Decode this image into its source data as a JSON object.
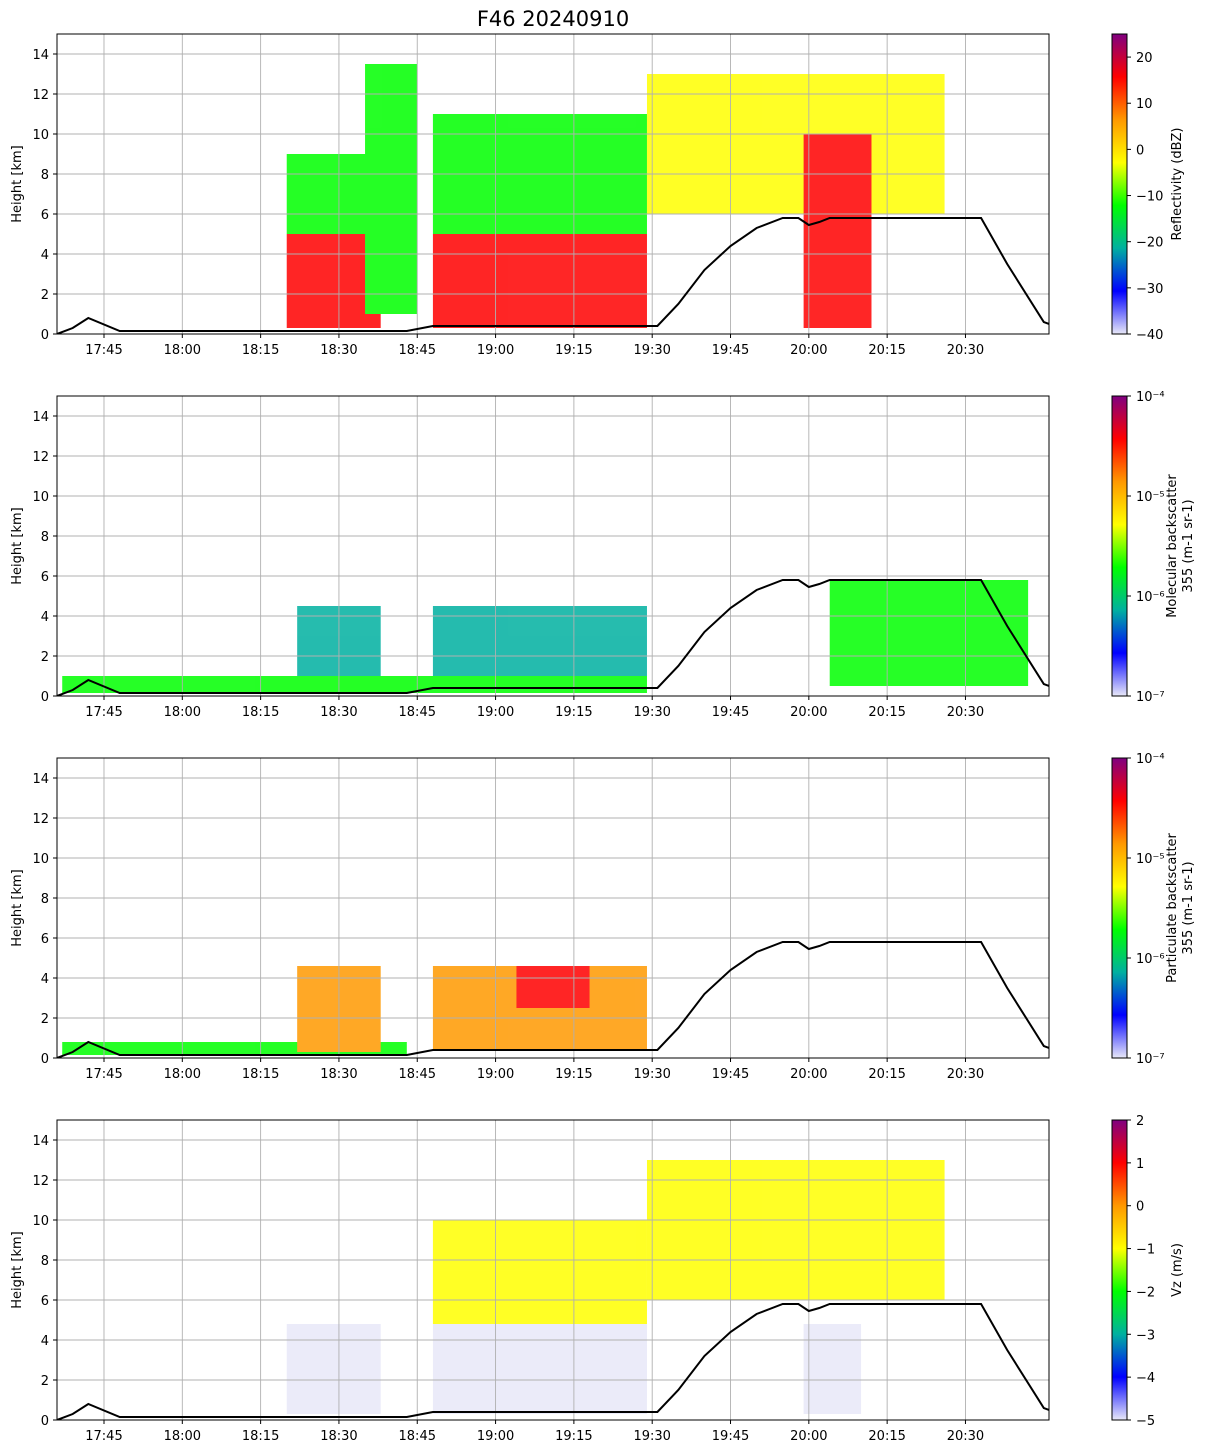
{
  "title": "F46 20240910",
  "chart_data": [
    {
      "type": "heatmap",
      "ylabel": "Height [km]",
      "xlabel": "",
      "ylim": [
        0,
        15
      ],
      "yticks": [
        "0",
        "2",
        "4",
        "6",
        "8",
        "10",
        "12",
        "14"
      ],
      "xticks": [
        "17:45",
        "18:00",
        "18:15",
        "18:30",
        "18:45",
        "19:00",
        "19:15",
        "19:30",
        "19:45",
        "20:00",
        "20:15",
        "20:30"
      ],
      "xlim": [
        "17:36",
        "20:46"
      ],
      "grid": true,
      "colorbar": {
        "label": "Reflectivity (dBZ)",
        "scale": "linear",
        "range": [
          -40,
          25
        ],
        "ticks": [
          "20",
          "10",
          "0",
          "−10",
          "−20",
          "−30",
          "−40"
        ]
      },
      "colormap": [
        "#e8e8f8",
        "#0000ff",
        "#00b0a0",
        "#00ff00",
        "#ffff00",
        "#ff9900",
        "#ff0000",
        "#800080"
      ],
      "series": [
        {
          "name": "",
          "x": [
            "17:36",
            "17:39",
            "17:42",
            "17:48",
            "18:43",
            "18:48",
            "19:31",
            "19:35",
            "19:40",
            "19:45",
            "19:50",
            "19:55",
            "19:58",
            "20:00",
            "20:02",
            "20:04",
            "20:33",
            "20:38",
            "20:45",
            "20:46"
          ],
          "y": [
            0.0,
            0.3,
            0.8,
            0.15,
            0.15,
            0.4,
            0.4,
            1.5,
            3.2,
            4.4,
            5.3,
            5.8,
            5.8,
            5.45,
            5.6,
            5.8,
            5.8,
            3.5,
            0.6,
            0.5
          ],
          "color": "#000000"
        }
      ],
      "echoes": [
        {
          "t": [
            "18:20",
            "18:38"
          ],
          "h": [
            0.3,
            5
          ],
          "value": 12
        },
        {
          "t": [
            "18:48",
            "19:29"
          ],
          "h": [
            0.3,
            5
          ],
          "value": 12
        },
        {
          "t": [
            "18:20",
            "18:38"
          ],
          "h": [
            5,
            9
          ],
          "value": -8
        },
        {
          "t": [
            "18:35",
            "18:45"
          ],
          "h": [
            1,
            13.5
          ],
          "value": -10
        },
        {
          "t": [
            "18:48",
            "19:29"
          ],
          "h": [
            5,
            11
          ],
          "value": -8
        },
        {
          "t": [
            "19:29",
            "20:26"
          ],
          "h": [
            6,
            13
          ],
          "value": -5
        },
        {
          "t": [
            "19:59",
            "20:12"
          ],
          "h": [
            0.3,
            10
          ],
          "value": 10
        }
      ]
    },
    {
      "type": "heatmap",
      "ylabel": "Height [km]",
      "xlabel": "",
      "ylim": [
        0,
        15
      ],
      "yticks": [
        "0",
        "2",
        "4",
        "6",
        "8",
        "10",
        "12",
        "14"
      ],
      "xticks": [
        "17:45",
        "18:00",
        "18:15",
        "18:30",
        "18:45",
        "19:00",
        "19:15",
        "19:30",
        "19:45",
        "20:00",
        "20:15",
        "20:30"
      ],
      "xlim": [
        "17:36",
        "20:46"
      ],
      "grid": true,
      "colorbar": {
        "label": "Molecular backscatter\n355 (m-1 sr-1)",
        "scale": "log",
        "range": [
          1e-07,
          0.0001
        ],
        "ticks": [
          "10⁻⁴",
          "10⁻⁵",
          "10⁻⁶",
          "10⁻⁷"
        ]
      },
      "colormap": [
        "#e8e8f8",
        "#0000ff",
        "#00b0a0",
        "#00ff00",
        "#ffff00",
        "#ff9900",
        "#ff0000",
        "#800080"
      ],
      "series": [
        {
          "name": "",
          "x": [
            "17:36",
            "17:39",
            "17:42",
            "17:48",
            "18:43",
            "18:48",
            "19:31",
            "19:35",
            "19:40",
            "19:45",
            "19:50",
            "19:55",
            "19:58",
            "20:00",
            "20:02",
            "20:04",
            "20:33",
            "20:38",
            "20:45",
            "20:46"
          ],
          "y": [
            0.0,
            0.3,
            0.8,
            0.15,
            0.15,
            0.4,
            0.4,
            1.5,
            3.2,
            4.4,
            5.3,
            5.8,
            5.8,
            5.45,
            5.6,
            5.8,
            5.8,
            3.5,
            0.6,
            0.5
          ],
          "color": "#000000"
        }
      ],
      "echoes": [
        {
          "t": [
            "17:37",
            "19:29"
          ],
          "h": [
            0.15,
            1.0
          ],
          "value": 3e-06
        },
        {
          "t": [
            "18:22",
            "18:38"
          ],
          "h": [
            1,
            4.5
          ],
          "value": 6e-07
        },
        {
          "t": [
            "18:48",
            "19:29"
          ],
          "h": [
            1,
            4.5
          ],
          "value": 6e-07
        },
        {
          "t": [
            "20:04",
            "20:42"
          ],
          "h": [
            0.5,
            5.8
          ],
          "value": 3e-06
        }
      ]
    },
    {
      "type": "heatmap",
      "ylabel": "Height [km]",
      "xlabel": "",
      "ylim": [
        0,
        15
      ],
      "yticks": [
        "0",
        "2",
        "4",
        "6",
        "8",
        "10",
        "12",
        "14"
      ],
      "xticks": [
        "17:45",
        "18:00",
        "18:15",
        "18:30",
        "18:45",
        "19:00",
        "19:15",
        "19:30",
        "19:45",
        "20:00",
        "20:15",
        "20:30"
      ],
      "xlim": [
        "17:36",
        "20:46"
      ],
      "grid": true,
      "colorbar": {
        "label": "Particulate backscatter\n355 (m-1 sr-1)",
        "scale": "log",
        "range": [
          1e-07,
          0.0001
        ],
        "ticks": [
          "10⁻⁴",
          "10⁻⁵",
          "10⁻⁶",
          "10⁻⁷"
        ]
      },
      "colormap": [
        "#e8e8f8",
        "#0000ff",
        "#00b0a0",
        "#00ff00",
        "#ffff00",
        "#ff9900",
        "#ff0000",
        "#800080"
      ],
      "series": [
        {
          "name": "",
          "x": [
            "17:36",
            "17:39",
            "17:42",
            "17:48",
            "18:43",
            "18:48",
            "19:31",
            "19:35",
            "19:40",
            "19:45",
            "19:50",
            "19:55",
            "19:58",
            "20:00",
            "20:02",
            "20:04",
            "20:33",
            "20:38",
            "20:45",
            "20:46"
          ],
          "y": [
            0.0,
            0.3,
            0.8,
            0.15,
            0.15,
            0.4,
            0.4,
            1.5,
            3.2,
            4.4,
            5.3,
            5.8,
            5.8,
            5.45,
            5.6,
            5.8,
            5.8,
            3.5,
            0.6,
            0.5
          ],
          "color": "#000000"
        }
      ],
      "echoes": [
        {
          "t": [
            "17:37",
            "18:43"
          ],
          "h": [
            0.15,
            0.8
          ],
          "value": 2e-06
        },
        {
          "t": [
            "18:22",
            "18:38"
          ],
          "h": [
            0.3,
            4.6
          ],
          "value": 8e-06
        },
        {
          "t": [
            "18:48",
            "19:29"
          ],
          "h": [
            0.4,
            4.6
          ],
          "value": 1.2e-05
        },
        {
          "t": [
            "19:04",
            "19:18"
          ],
          "h": [
            2.5,
            4.6
          ],
          "value": 3e-05
        }
      ]
    },
    {
      "type": "heatmap",
      "ylabel": "Height [km]",
      "xlabel": "",
      "ylim": [
        0,
        15
      ],
      "yticks": [
        "0",
        "2",
        "4",
        "6",
        "8",
        "10",
        "12",
        "14"
      ],
      "xticks": [
        "17:45",
        "18:00",
        "18:15",
        "18:30",
        "18:45",
        "19:00",
        "19:15",
        "19:30",
        "19:45",
        "20:00",
        "20:15",
        "20:30"
      ],
      "xlim": [
        "17:36",
        "20:46"
      ],
      "grid": true,
      "colorbar": {
        "label": "Vz (m/s)",
        "scale": "linear",
        "range": [
          -5,
          2
        ],
        "ticks": [
          "2",
          "1",
          "0",
          "−1",
          "−2",
          "−3",
          "−4",
          "−5"
        ]
      },
      "colormap": [
        "#e8e8f8",
        "#0000ff",
        "#00b0a0",
        "#00ff00",
        "#ffff00",
        "#ff9900",
        "#ff0000",
        "#800080"
      ],
      "series": [
        {
          "name": "",
          "x": [
            "17:36",
            "17:39",
            "17:42",
            "17:48",
            "18:43",
            "18:48",
            "19:31",
            "19:35",
            "19:40",
            "19:45",
            "19:50",
            "19:55",
            "19:58",
            "20:00",
            "20:02",
            "20:04",
            "20:33",
            "20:38",
            "20:45",
            "20:46"
          ],
          "y": [
            0.0,
            0.3,
            0.8,
            0.15,
            0.15,
            0.4,
            0.4,
            1.5,
            3.2,
            4.4,
            5.3,
            5.8,
            5.8,
            5.45,
            5.6,
            5.8,
            5.8,
            3.5,
            0.6,
            0.5
          ],
          "color": "#000000"
        }
      ],
      "echoes": [
        {
          "t": [
            "18:20",
            "18:38"
          ],
          "h": [
            0.3,
            4.8
          ],
          "value": -4.3
        },
        {
          "t": [
            "18:48",
            "19:29"
          ],
          "h": [
            0.3,
            4.8
          ],
          "value": -4.6
        },
        {
          "t": [
            "18:48",
            "19:29"
          ],
          "h": [
            4.8,
            10
          ],
          "value": -1.3
        },
        {
          "t": [
            "19:29",
            "20:26"
          ],
          "h": [
            6,
            13
          ],
          "value": -0.8
        },
        {
          "t": [
            "19:59",
            "20:10"
          ],
          "h": [
            0.3,
            4.8
          ],
          "value": -4.6
        }
      ]
    }
  ]
}
